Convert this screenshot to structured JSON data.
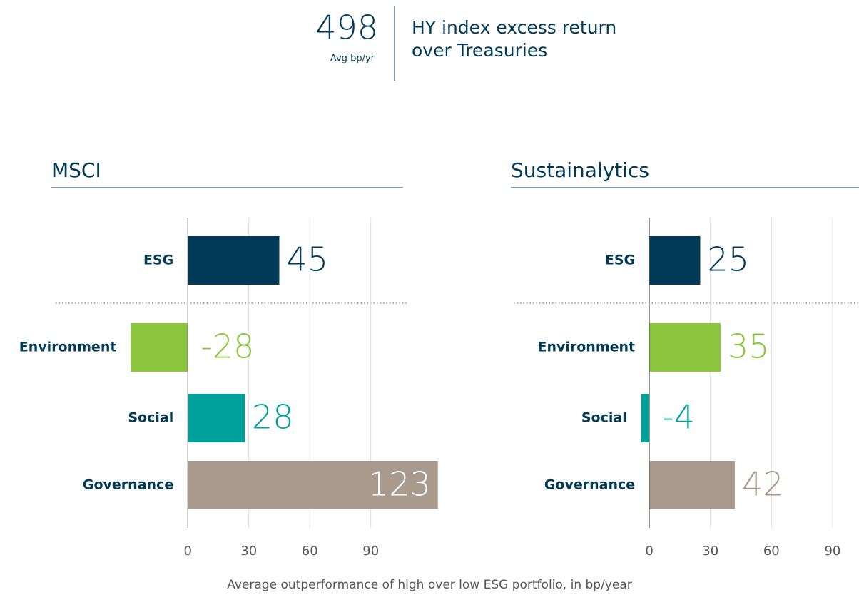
{
  "header": {
    "value": 498,
    "unit": "Avg bp/yr",
    "description": [
      "HY index excess return",
      "over Treasuries"
    ]
  },
  "chart_data": [
    {
      "type": "bar",
      "orientation": "horizontal",
      "title": "MSCI",
      "categories": [
        "ESG",
        "Environment",
        "Social",
        "Governance"
      ],
      "values": [
        45,
        -28,
        28,
        123
      ],
      "colors": [
        "#003a57",
        "#8cc63f",
        "#00a19a",
        "#a89a8c"
      ],
      "xlim": [
        -65,
        108
      ],
      "xticks": [
        0,
        30,
        60,
        90
      ],
      "grid": true
    },
    {
      "type": "bar",
      "orientation": "horizontal",
      "title": "Sustainalytics",
      "categories": [
        "ESG",
        "Environment",
        "Social",
        "Governance"
      ],
      "values": [
        25,
        35,
        -4,
        42
      ],
      "colors": [
        "#003a57",
        "#8cc63f",
        "#00a19a",
        "#a89a8c"
      ],
      "xlim": [
        -67,
        103
      ],
      "xticks": [
        0,
        30,
        60,
        90
      ],
      "grid": true
    }
  ],
  "footer": "Average outperformance of high over low ESG portfolio, in bp/year"
}
